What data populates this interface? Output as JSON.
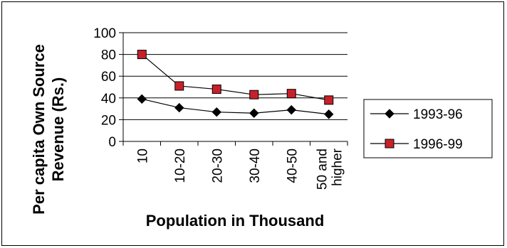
{
  "chart_data": {
    "type": "line",
    "title": "",
    "xlabel": "Population in Thousand",
    "ylabel_lines": [
      "Per capita Own Source",
      "Revenue (Rs.)"
    ],
    "categories": [
      [
        "10"
      ],
      [
        "10-20"
      ],
      [
        "20-30"
      ],
      [
        "30-40"
      ],
      [
        "40-50"
      ],
      [
        "50 and",
        "higher"
      ]
    ],
    "ylim": [
      0,
      100
    ],
    "yticks": [
      "0",
      "20",
      "40",
      "60",
      "80",
      "100"
    ],
    "grid": "horizontal",
    "legend_position": "right",
    "series": [
      {
        "name": "1993-96",
        "marker": "diamond",
        "color": "#000000",
        "marker_fill": "#000000",
        "values": [
          39,
          31,
          27,
          26,
          29,
          25
        ]
      },
      {
        "name": "1996-99",
        "marker": "square",
        "color": "#000000",
        "marker_fill": "#c8202a",
        "values": [
          80,
          51,
          48,
          43,
          44,
          38
        ]
      }
    ]
  }
}
